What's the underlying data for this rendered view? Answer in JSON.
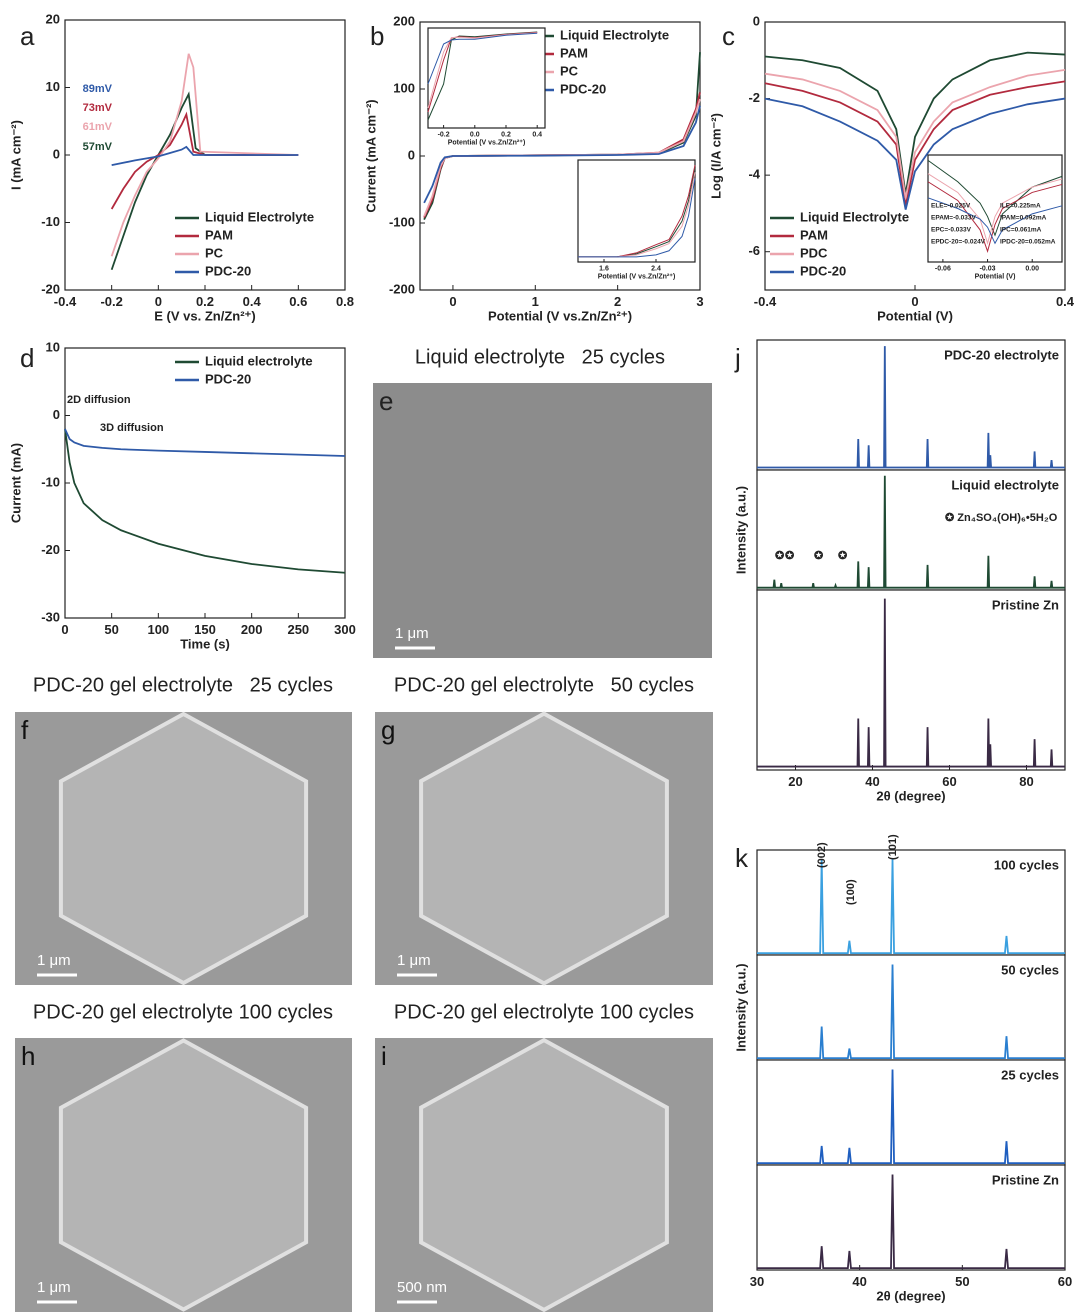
{
  "chart_data": [
    {
      "type": "line",
      "label": "a",
      "xlabel": "E (V vs. Zn/Zn²⁺)",
      "ylabel": "I (mA cm⁻²)",
      "xlim": [
        -0.4,
        0.8
      ],
      "ylim": [
        -20,
        20
      ],
      "xticks": [
        -0.4,
        -0.2,
        0.0,
        0.2,
        0.4,
        0.6,
        0.8
      ],
      "yticks": [
        -20,
        -10,
        0,
        10,
        20
      ],
      "legend": "lower right",
      "series": [
        {
          "name": "Liquid Electrolyte",
          "color": "#1f4a33",
          "x": [
            -0.2,
            -0.15,
            -0.1,
            -0.05,
            0,
            0.05,
            0.1,
            0.13,
            0.16,
            0.2,
            0.6
          ],
          "values": [
            -17,
            -12,
            -7,
            -3,
            0,
            3,
            7,
            9,
            1,
            0,
            0
          ]
        },
        {
          "name": "PAM",
          "color": "#b22a3e",
          "x": [
            -0.2,
            -0.15,
            -0.1,
            -0.05,
            0,
            0.05,
            0.1,
            0.12,
            0.15,
            0.2,
            0.6
          ],
          "values": [
            -8,
            -5,
            -2.5,
            -1,
            0,
            1.5,
            4.5,
            6,
            0.5,
            0,
            0
          ]
        },
        {
          "name": "PC",
          "color": "#eba4ad",
          "x": [
            -0.2,
            -0.15,
            -0.1,
            -0.05,
            0,
            0.05,
            0.1,
            0.13,
            0.15,
            0.18,
            0.6
          ],
          "values": [
            -15,
            -10,
            -6,
            -2.5,
            -0.5,
            2,
            8,
            15,
            13,
            0.5,
            0
          ]
        },
        {
          "name": "PDC-20",
          "color": "#2f5aa8",
          "x": [
            -0.2,
            -0.1,
            0,
            0.05,
            0.1,
            0.12,
            0.15,
            0.6
          ],
          "values": [
            -1.5,
            -0.8,
            -0.2,
            0.3,
            0.8,
            1.2,
            0,
            0
          ]
        }
      ],
      "annotations": [
        {
          "text": "89mV",
          "color": "#2f5aa8"
        },
        {
          "text": "73mV",
          "color": "#b22a3e"
        },
        {
          "text": "61mV",
          "color": "#eba4ad"
        },
        {
          "text": "57mV",
          "color": "#1f4a33"
        }
      ]
    },
    {
      "type": "line",
      "label": "b",
      "xlabel": "Potential (V vs.Zn/Zn²⁺)",
      "ylabel": "Current (mA cm⁻²)",
      "xlim": [
        -0.4,
        3.0
      ],
      "ylim": [
        -200,
        200
      ],
      "xticks": [
        0,
        1,
        2,
        3
      ],
      "yticks": [
        -200,
        -100,
        0,
        100,
        200
      ],
      "legend": "upper right",
      "x": [
        -0.35,
        -0.25,
        -0.15,
        -0.1,
        0,
        1,
        2,
        2.5,
        2.8,
        2.95,
        3.0
      ],
      "series": [
        {
          "name": "Liquid Electrolyte",
          "color": "#1f4a33",
          "values": [
            -95,
            -70,
            -20,
            -3,
            0,
            1,
            2,
            4,
            20,
            60,
            155
          ]
        },
        {
          "name": "PAM",
          "color": "#b22a3e",
          "values": [
            -92,
            -65,
            -18,
            -3,
            0,
            1,
            2,
            5,
            25,
            70,
            95
          ]
        },
        {
          "name": "PC",
          "color": "#eba4ad",
          "values": [
            -90,
            -60,
            -15,
            -3,
            0,
            1,
            2,
            5,
            22,
            65,
            85
          ]
        },
        {
          "name": "PDC-20",
          "color": "#2f5aa8",
          "values": [
            -70,
            -45,
            -10,
            -2,
            0,
            0.5,
            1.5,
            3,
            15,
            50,
            75
          ]
        }
      ]
    },
    {
      "type": "line",
      "xlabel": "Potential (V vs.Zn/Zn²⁺)",
      "xlim": [
        -0.3,
        0.45
      ],
      "ylim": [
        -50,
        200
      ],
      "xticks": [
        -0.2,
        {
          "value": 0,
          "label": "0.0"
        },
        0.2,
        0.4
      ],
      "x": [
        -0.3,
        -0.2,
        -0.15,
        -0.1,
        0,
        0.2,
        0.4
      ],
      "series": [
        {
          "color": "#1f4a33",
          "values": [
            -30,
            60,
            170,
            180,
            178,
            185,
            190
          ]
        },
        {
          "color": "#b22a3e",
          "values": [
            -10,
            120,
            175,
            178,
            176,
            184,
            189
          ]
        },
        {
          "color": "#eba4ad",
          "values": [
            0,
            140,
            176,
            177,
            175,
            183,
            188
          ]
        },
        {
          "color": "#2f5aa8",
          "values": [
            60,
            160,
            170,
            172,
            172,
            182,
            187
          ]
        }
      ]
    },
    {
      "type": "line",
      "xlabel": "Potential (V vs.Zn/Zn²⁺)",
      "xlim": [
        1.2,
        3.0
      ],
      "ylim": [
        0,
        100
      ],
      "xticks": [
        1.6,
        2.4
      ],
      "x": [
        1.2,
        1.8,
        2.1,
        2.4,
        2.6,
        2.8,
        2.9,
        3.0
      ],
      "series": [
        {
          "color": "#1f4a33",
          "values": [
            5,
            5,
            8,
            15,
            20,
            40,
            60,
            92
          ]
        },
        {
          "color": "#b22a3e",
          "values": [
            5,
            5,
            9,
            17,
            22,
            45,
            65,
            95
          ]
        },
        {
          "color": "#eba4ad",
          "values": [
            5,
            5,
            7,
            13,
            18,
            35,
            55,
            88
          ]
        },
        {
          "color": "#2f5aa8",
          "values": [
            5,
            5,
            5,
            7,
            11,
            25,
            45,
            82
          ]
        }
      ]
    },
    {
      "type": "line",
      "label": "c",
      "xlabel": "Potential (V)",
      "ylabel": "Log (I/A cm⁻²)",
      "xlim": [
        -0.4,
        0.4
      ],
      "ylim": [
        -7,
        0
      ],
      "xticks": [
        -0.4,
        0.0,
        0.4
      ],
      "yticks": [
        0,
        -2,
        -4,
        -6
      ],
      "legend": "lower left",
      "x": [
        -0.4,
        -0.3,
        -0.2,
        -0.1,
        -0.05,
        -0.025,
        0,
        0.05,
        0.1,
        0.2,
        0.3,
        0.4
      ],
      "series": [
        {
          "name": "Liquid Electrolyte",
          "color": "#1f4a33",
          "values": [
            -0.9,
            -1.0,
            -1.2,
            -1.8,
            -2.8,
            -4.5,
            -3,
            -2,
            -1.5,
            -1.0,
            -0.8,
            -0.85
          ]
        },
        {
          "name": "PAM",
          "color": "#b22a3e",
          "values": [
            -1.6,
            -1.8,
            -2.1,
            -2.6,
            -3.2,
            -4.8,
            -3.6,
            -2.8,
            -2.3,
            -1.9,
            -1.7,
            -1.55
          ]
        },
        {
          "name": "PDC",
          "color": "#eba4ad",
          "values": [
            -1.35,
            -1.5,
            -1.8,
            -2.3,
            -3.0,
            -4.6,
            -3.4,
            -2.6,
            -2.1,
            -1.7,
            -1.4,
            -1.25
          ]
        },
        {
          "name": "PDC-20",
          "color": "#2f5aa8",
          "values": [
            -2.0,
            -2.2,
            -2.6,
            -3.1,
            -3.6,
            -4.9,
            -3.9,
            -3.2,
            -2.8,
            -2.4,
            -2.15,
            -2.0
          ]
        }
      ]
    },
    {
      "type": "line",
      "xlabel": "Potential (V)",
      "xlim": [
        -0.07,
        0.02
      ],
      "ylim": [
        -6,
        -2
      ],
      "xticks": [
        -0.06,
        -0.03,
        {
          "value": 0,
          "label": "0.00"
        }
      ],
      "x": [
        -0.07,
        -0.05,
        -0.035,
        -0.03,
        -0.025,
        -0.02,
        0,
        0.02
      ],
      "series": [
        {
          "color": "#1f4a33",
          "values": [
            -2.2,
            -3,
            -3.8,
            -4.3,
            -5,
            -4.2,
            -3.2,
            -2.8
          ]
        },
        {
          "color": "#b22a3e",
          "values": [
            -3,
            -3.7,
            -4.8,
            -5.6,
            -4.6,
            -4,
            -3.4,
            -3.1
          ]
        },
        {
          "color": "#eba4ad",
          "values": [
            -2.7,
            -3.4,
            -4.4,
            -5.3,
            -4.3,
            -3.8,
            -3.2,
            -2.9
          ]
        },
        {
          "color": "#2f5aa8",
          "values": [
            -3.6,
            -4,
            -4.4,
            -4.7,
            -5.3,
            -4.8,
            -4.2,
            -3.9
          ]
        }
      ],
      "annotations": [
        {
          "text": "ELE=-0.025V"
        },
        {
          "text": "EPAM=-0.033V"
        },
        {
          "text": "EPC=-0.033V"
        },
        {
          "text": "EPDC-20=-0.024V"
        },
        {
          "text": "ILE=0.225mA"
        },
        {
          "text": "IPAM=0.092mA"
        },
        {
          "text": "IPC=0.061mA"
        },
        {
          "text": "IPDC-20=0.052mA"
        }
      ]
    },
    {
      "type": "line",
      "label": "d",
      "xlabel": "Time (s)",
      "ylabel": "Current (mA)",
      "xlim": [
        0,
        300
      ],
      "ylim": [
        -30,
        10
      ],
      "xticks": [
        0,
        50,
        100,
        150,
        200,
        250,
        300
      ],
      "yticks": [
        -30,
        -20,
        -10,
        0,
        10
      ],
      "legend": "upper right",
      "x": [
        0,
        5,
        10,
        20,
        40,
        60,
        100,
        150,
        200,
        250,
        300
      ],
      "series": [
        {
          "name": "Liquid electrolyte",
          "color": "#1f4a33",
          "values": [
            -2,
            -7,
            -10,
            -13,
            -15.5,
            -17,
            -19,
            -20.8,
            -22,
            -22.8,
            -23.3
          ]
        },
        {
          "name": "PDC-20",
          "color": "#2f5aa8",
          "values": [
            -2,
            -3.5,
            -4,
            -4.5,
            -4.8,
            -5,
            -5.2,
            -5.4,
            -5.6,
            -5.8,
            -6
          ]
        }
      ],
      "annotations": [
        {
          "text": "2D diffusion"
        },
        {
          "text": "3D diffusion"
        }
      ]
    },
    {
      "type": "line",
      "label": "j",
      "title": "PDC-20 electrolyte",
      "xlim": [
        10,
        90
      ],
      "ylim": [
        0,
        105
      ],
      "x": [
        10,
        36.1,
        36.3,
        36.5,
        38.8,
        39,
        39.2,
        43,
        43.2,
        43.4,
        54.1,
        54.3,
        54.5,
        69.9,
        70.1,
        70.3,
        70.4,
        70.6,
        70.8,
        81.9,
        82.1,
        82.3,
        86.3,
        86.5,
        86.7,
        90
      ],
      "series": [
        {
          "color": "#2f5aa8",
          "values": [
            2,
            2,
            25,
            2,
            2,
            20,
            2,
            2,
            100,
            2,
            2,
            25,
            2,
            2,
            30,
            2,
            2,
            12,
            2,
            2,
            15,
            2,
            2,
            8,
            2,
            2
          ]
        }
      ]
    },
    {
      "type": "line",
      "title": "Liquid electrolyte",
      "ylabel": "Intensity (a.u.)",
      "xlim": [
        10,
        90
      ],
      "ylim": [
        0,
        105
      ],
      "x": [
        10,
        14.3,
        14.5,
        14.7,
        16.1,
        16.3,
        16.5,
        24.4,
        24.6,
        24.8,
        30.2,
        30.4,
        30.6,
        36.1,
        36.3,
        36.5,
        38.8,
        39,
        39.2,
        43,
        43.2,
        43.4,
        54.1,
        54.3,
        54.5,
        69.9,
        70.1,
        70.3,
        81.9,
        82.1,
        82.3,
        86.3,
        86.5,
        86.7,
        90
      ],
      "series": [
        {
          "color": "#1f4a33",
          "values": [
            2,
            2,
            9,
            2,
            2,
            6,
            2,
            2,
            6,
            2,
            2,
            4,
            2,
            2,
            25,
            2,
            2,
            20,
            2,
            2,
            100,
            2,
            2,
            22,
            2,
            2,
            30,
            2,
            2,
            12,
            2,
            2,
            8,
            2,
            2
          ]
        }
      ],
      "annotations": [
        {
          "text": "✪ Zn₄SO₄(OH)₆•5H₂O"
        },
        {
          "text": "✪"
        },
        {
          "text": "✪"
        },
        {
          "text": "✪"
        },
        {
          "text": "✪"
        }
      ]
    },
    {
      "type": "line",
      "title": "Pristine Zn",
      "xlabel": "2θ (degree)",
      "xlim": [
        10,
        90
      ],
      "ylim": [
        0,
        105
      ],
      "xticks": [
        20,
        40,
        60,
        80
      ],
      "x": [
        10,
        36.1,
        36.3,
        36.5,
        38.8,
        39,
        39.2,
        43,
        43.2,
        43.4,
        54.1,
        54.3,
        54.5,
        69.9,
        70.1,
        70.3,
        70.4,
        70.6,
        70.8,
        81.9,
        82.1,
        82.3,
        86.3,
        86.5,
        86.7,
        90
      ],
      "series": [
        {
          "color": "#3a2a45",
          "values": [
            2,
            2,
            30,
            2,
            2,
            25,
            2,
            2,
            100,
            2,
            2,
            25,
            2,
            2,
            30,
            2,
            2,
            15,
            2,
            2,
            18,
            2,
            2,
            12,
            2,
            2
          ]
        }
      ]
    },
    {
      "type": "line",
      "label": "k",
      "title": "100 cycles",
      "xlim": [
        30,
        60
      ],
      "ylim": [
        0,
        110
      ],
      "x": [
        30,
        36.15,
        36.3,
        36.45,
        38.85,
        39,
        39.15,
        43.05,
        43.2,
        43.35,
        54.15,
        54.3,
        54.45,
        60
      ],
      "series": [
        {
          "color": "#3aa0e0",
          "values": [
            2,
            2,
            100,
            2,
            2,
            15,
            2,
            2,
            100,
            2,
            2,
            20,
            2,
            2
          ]
        }
      ],
      "annotations": [
        {
          "text": "(002)"
        },
        {
          "text": "(100)"
        },
        {
          "text": "(101)"
        }
      ]
    },
    {
      "type": "line",
      "title": "50 cycles",
      "ylabel": "Intensity (a.u.)",
      "xlim": [
        30,
        60
      ],
      "ylim": [
        0,
        110
      ],
      "x": [
        30,
        36.15,
        36.3,
        36.45,
        38.85,
        39,
        39.15,
        43.05,
        43.2,
        43.35,
        54.15,
        54.3,
        54.45,
        60
      ],
      "series": [
        {
          "color": "#2a7fd0",
          "values": [
            2,
            2,
            35,
            2,
            2,
            12,
            2,
            2,
            100,
            2,
            2,
            25,
            2,
            2
          ]
        }
      ]
    },
    {
      "type": "line",
      "title": "25 cycles",
      "xlim": [
        30,
        60
      ],
      "ylim": [
        0,
        110
      ],
      "x": [
        30,
        36.15,
        36.3,
        36.45,
        38.85,
        39,
        39.15,
        43.05,
        43.2,
        43.35,
        54.15,
        54.3,
        54.45,
        60
      ],
      "series": [
        {
          "color": "#1f5fc0",
          "values": [
            2,
            2,
            20,
            2,
            2,
            18,
            2,
            2,
            100,
            2,
            2,
            25,
            2,
            2
          ]
        }
      ]
    },
    {
      "type": "line",
      "title": "Pristine Zn",
      "xlabel": "2θ (degree)",
      "xlim": [
        30,
        60
      ],
      "ylim": [
        0,
        110
      ],
      "xticks": [
        30,
        40,
        50,
        60
      ],
      "x": [
        30,
        36.15,
        36.3,
        36.45,
        38.85,
        39,
        39.15,
        43.05,
        43.2,
        43.35,
        54.15,
        54.3,
        54.45,
        60
      ],
      "series": [
        {
          "color": "#3a2a45",
          "values": [
            2,
            2,
            25,
            2,
            2,
            20,
            2,
            2,
            100,
            2,
            2,
            22,
            2,
            2
          ]
        }
      ]
    }
  ],
  "image_panels": [
    {
      "label": "e",
      "caption": "Liquid electrolyte   25 cycles",
      "scale_bar": "1 μm"
    },
    {
      "label": "f",
      "caption": "PDC-20 gel electrolyte   25 cycles",
      "scale_bar": "1 μm"
    },
    {
      "label": "g",
      "caption": "PDC-20 gel electrolyte   50 cycles",
      "scale_bar": "1 μm"
    },
    {
      "label": "h",
      "caption": "PDC-20 gel electrolyte 100 cycles",
      "scale_bar": "1 μm"
    },
    {
      "label": "i",
      "caption": "PDC-20 gel electrolyte 100 cycles",
      "scale_bar": "500 nm"
    }
  ]
}
